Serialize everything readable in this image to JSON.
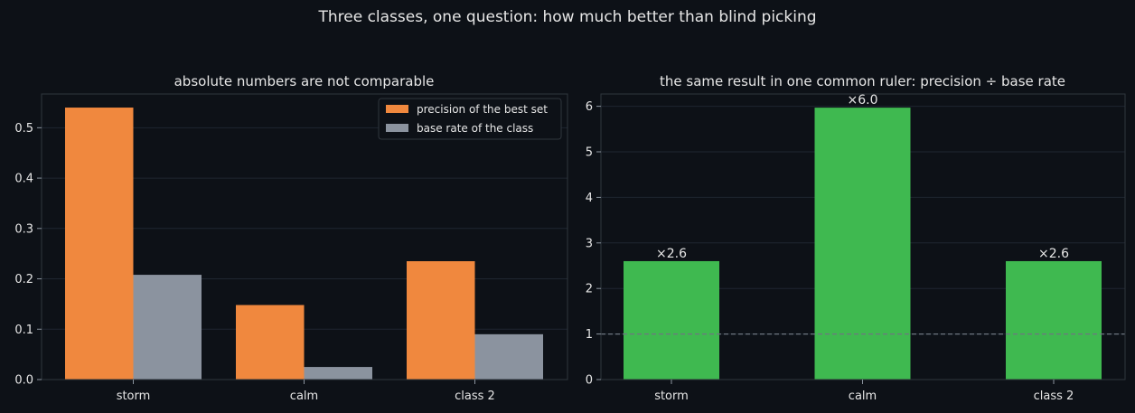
{
  "suptitle": "Three classes, one question: how much better than blind picking",
  "chart_data": [
    {
      "type": "bar",
      "title": "absolute numbers are not comparable",
      "categories": [
        "storm",
        "calm",
        "class 2"
      ],
      "series": [
        {
          "name": "precision of the best set",
          "values": [
            0.54,
            0.148,
            0.235
          ],
          "color": "#f0883e"
        },
        {
          "name": "base rate of the class",
          "values": [
            0.208,
            0.025,
            0.09
          ],
          "color": "#8b939f"
        }
      ],
      "ylim": [
        0,
        0.567
      ],
      "yticks": [
        0.0,
        0.1,
        0.2,
        0.3,
        0.4,
        0.5
      ],
      "ytick_labels": [
        "0.0",
        "0.1",
        "0.2",
        "0.3",
        "0.4",
        "0.5"
      ],
      "legend_placement": "top-right",
      "grid": true
    },
    {
      "type": "bar",
      "title": "the same result in one common ruler: precision ÷ base rate",
      "categories": [
        "storm",
        "calm",
        "class 2"
      ],
      "values": [
        2.6,
        5.97,
        2.6
      ],
      "data_labels": [
        "×2.6",
        "×6.0",
        "×2.6"
      ],
      "color": "#3fb950",
      "ylim": [
        0,
        6.27
      ],
      "yticks": [
        0,
        1,
        2,
        3,
        4,
        5,
        6
      ],
      "ytick_labels": [
        "0",
        "1",
        "2",
        "3",
        "4",
        "5",
        "6"
      ],
      "reference_line": 1,
      "grid": true
    }
  ]
}
